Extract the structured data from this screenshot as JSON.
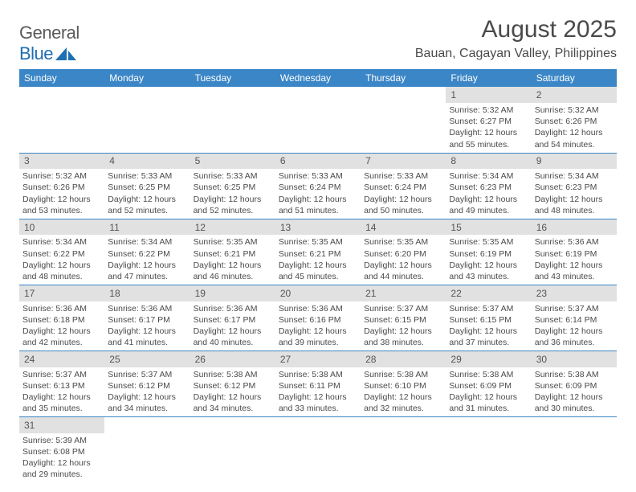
{
  "logo": {
    "text_general": "General",
    "text_blue": "Blue"
  },
  "title": "August 2025",
  "location": "Bauan, Cagayan Valley, Philippines",
  "colors": {
    "header_bg": "#3b86c6",
    "header_text": "#ffffff",
    "daynum_bg": "#e1e1e1",
    "cell_border": "#3b86c6",
    "text": "#4a4a4a",
    "logo_gray": "#5a5a5a",
    "logo_blue": "#1f6fb2"
  },
  "day_labels": [
    "Sunday",
    "Monday",
    "Tuesday",
    "Wednesday",
    "Thursday",
    "Friday",
    "Saturday"
  ],
  "weeks": [
    {
      "nums": [
        "",
        "",
        "",
        "",
        "",
        "1",
        "2"
      ],
      "cells": [
        null,
        null,
        null,
        null,
        null,
        {
          "sr": "5:32 AM",
          "ss": "6:27 PM",
          "dl": "12 hours and 55 minutes."
        },
        {
          "sr": "5:32 AM",
          "ss": "6:26 PM",
          "dl": "12 hours and 54 minutes."
        }
      ]
    },
    {
      "nums": [
        "3",
        "4",
        "5",
        "6",
        "7",
        "8",
        "9"
      ],
      "cells": [
        {
          "sr": "5:32 AM",
          "ss": "6:26 PM",
          "dl": "12 hours and 53 minutes."
        },
        {
          "sr": "5:33 AM",
          "ss": "6:25 PM",
          "dl": "12 hours and 52 minutes."
        },
        {
          "sr": "5:33 AM",
          "ss": "6:25 PM",
          "dl": "12 hours and 52 minutes."
        },
        {
          "sr": "5:33 AM",
          "ss": "6:24 PM",
          "dl": "12 hours and 51 minutes."
        },
        {
          "sr": "5:33 AM",
          "ss": "6:24 PM",
          "dl": "12 hours and 50 minutes."
        },
        {
          "sr": "5:34 AM",
          "ss": "6:23 PM",
          "dl": "12 hours and 49 minutes."
        },
        {
          "sr": "5:34 AM",
          "ss": "6:23 PM",
          "dl": "12 hours and 48 minutes."
        }
      ]
    },
    {
      "nums": [
        "10",
        "11",
        "12",
        "13",
        "14",
        "15",
        "16"
      ],
      "cells": [
        {
          "sr": "5:34 AM",
          "ss": "6:22 PM",
          "dl": "12 hours and 48 minutes."
        },
        {
          "sr": "5:34 AM",
          "ss": "6:22 PM",
          "dl": "12 hours and 47 minutes."
        },
        {
          "sr": "5:35 AM",
          "ss": "6:21 PM",
          "dl": "12 hours and 46 minutes."
        },
        {
          "sr": "5:35 AM",
          "ss": "6:21 PM",
          "dl": "12 hours and 45 minutes."
        },
        {
          "sr": "5:35 AM",
          "ss": "6:20 PM",
          "dl": "12 hours and 44 minutes."
        },
        {
          "sr": "5:35 AM",
          "ss": "6:19 PM",
          "dl": "12 hours and 43 minutes."
        },
        {
          "sr": "5:36 AM",
          "ss": "6:19 PM",
          "dl": "12 hours and 43 minutes."
        }
      ]
    },
    {
      "nums": [
        "17",
        "18",
        "19",
        "20",
        "21",
        "22",
        "23"
      ],
      "cells": [
        {
          "sr": "5:36 AM",
          "ss": "6:18 PM",
          "dl": "12 hours and 42 minutes."
        },
        {
          "sr": "5:36 AM",
          "ss": "6:17 PM",
          "dl": "12 hours and 41 minutes."
        },
        {
          "sr": "5:36 AM",
          "ss": "6:17 PM",
          "dl": "12 hours and 40 minutes."
        },
        {
          "sr": "5:36 AM",
          "ss": "6:16 PM",
          "dl": "12 hours and 39 minutes."
        },
        {
          "sr": "5:37 AM",
          "ss": "6:15 PM",
          "dl": "12 hours and 38 minutes."
        },
        {
          "sr": "5:37 AM",
          "ss": "6:15 PM",
          "dl": "12 hours and 37 minutes."
        },
        {
          "sr": "5:37 AM",
          "ss": "6:14 PM",
          "dl": "12 hours and 36 minutes."
        }
      ]
    },
    {
      "nums": [
        "24",
        "25",
        "26",
        "27",
        "28",
        "29",
        "30"
      ],
      "cells": [
        {
          "sr": "5:37 AM",
          "ss": "6:13 PM",
          "dl": "12 hours and 35 minutes."
        },
        {
          "sr": "5:37 AM",
          "ss": "6:12 PM",
          "dl": "12 hours and 34 minutes."
        },
        {
          "sr": "5:38 AM",
          "ss": "6:12 PM",
          "dl": "12 hours and 34 minutes."
        },
        {
          "sr": "5:38 AM",
          "ss": "6:11 PM",
          "dl": "12 hours and 33 minutes."
        },
        {
          "sr": "5:38 AM",
          "ss": "6:10 PM",
          "dl": "12 hours and 32 minutes."
        },
        {
          "sr": "5:38 AM",
          "ss": "6:09 PM",
          "dl": "12 hours and 31 minutes."
        },
        {
          "sr": "5:38 AM",
          "ss": "6:09 PM",
          "dl": "12 hours and 30 minutes."
        }
      ]
    },
    {
      "nums": [
        "31",
        "",
        "",
        "",
        "",
        "",
        ""
      ],
      "cells": [
        {
          "sr": "5:39 AM",
          "ss": "6:08 PM",
          "dl": "12 hours and 29 minutes."
        },
        null,
        null,
        null,
        null,
        null,
        null
      ]
    }
  ],
  "labels": {
    "sunrise": "Sunrise:",
    "sunset": "Sunset:",
    "daylight": "Daylight:"
  }
}
